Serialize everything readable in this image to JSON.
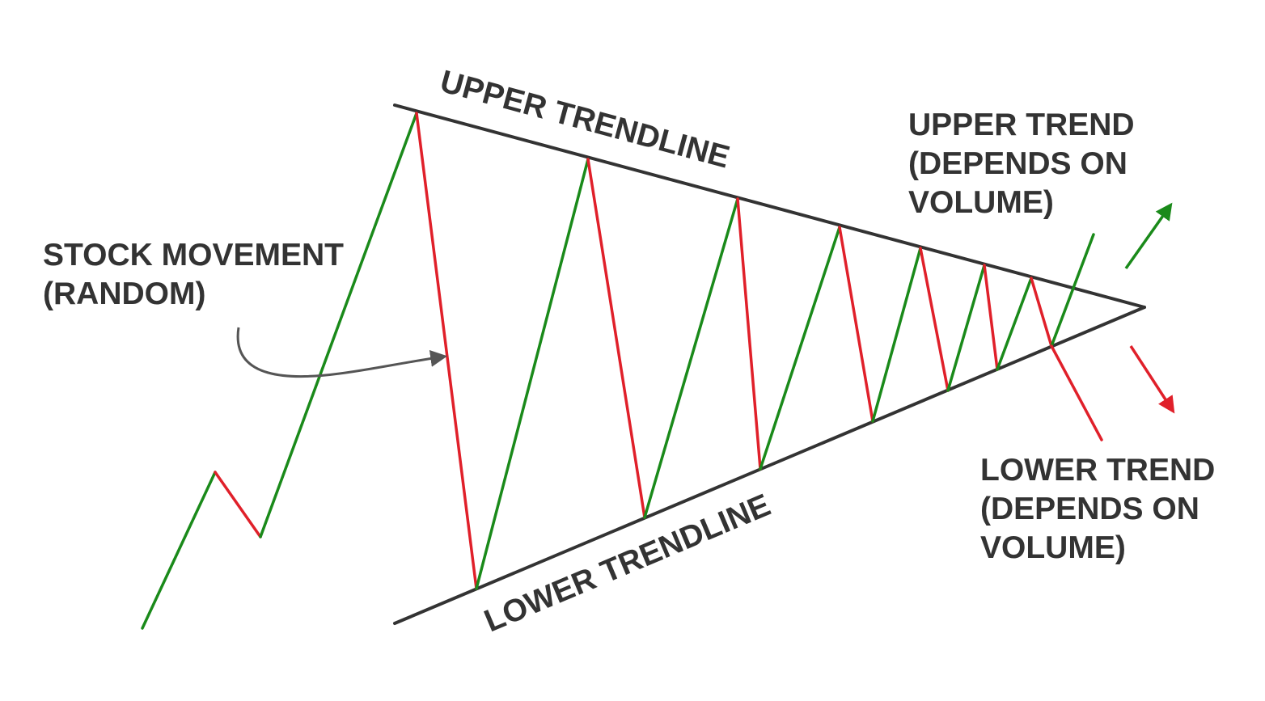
{
  "labels": {
    "upper_trendline": "UPPER TRENDLINE",
    "lower_trendline": "LOWER TRENDLINE",
    "stock_movement": [
      "STOCK MOVEMENT",
      "(RANDOM)"
    ],
    "upper_trend": [
      "UPPER TREND",
      "(DEPENDS ON",
      "VOLUME)"
    ],
    "lower_trend": [
      "LOWER TREND",
      "(DEPENDS ON",
      "VOLUME)"
    ]
  },
  "colors": {
    "rise": "#1a8a1a",
    "fall": "#e0202a",
    "trendline": "#333333",
    "arrow": "#555555",
    "text": "#333333"
  }
}
